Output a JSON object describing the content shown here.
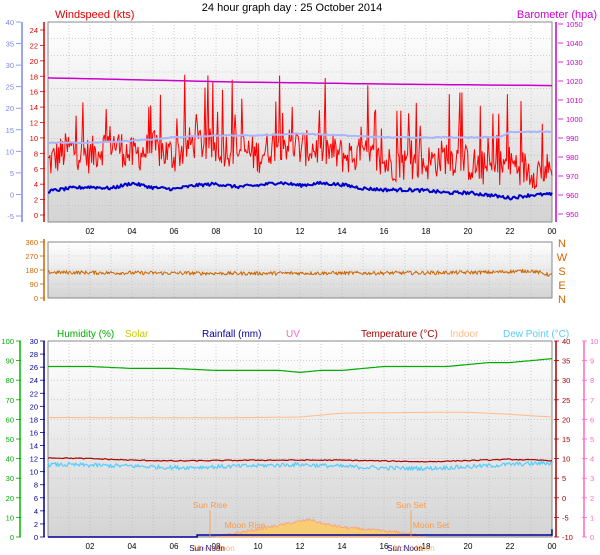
{
  "title": "24 hour graph day : 25 October 2014",
  "x_ticks": [
    "02",
    "04",
    "06",
    "08",
    "10",
    "12",
    "14",
    "16",
    "18",
    "20",
    "22",
    "00"
  ],
  "colors": {
    "wind": "#ff0000",
    "wind_avg": "#0000cc",
    "baro": "#cc00cc",
    "baro_avg": "#aab4ff",
    "dir": "#cc6600",
    "humidity": "#00aa00",
    "solar": "#cccc00",
    "rain": "#000099",
    "uv": "#ff66cc",
    "temp": "#aa0000",
    "indoor": "#ffbb88",
    "dew": "#55ccff",
    "panel_top": "#ffffff",
    "panel_bottom": "#d8d8d8"
  },
  "wind_panel": {
    "left_label": "Windspeed (kts)",
    "right_label": "Barometer (hpa)",
    "left_outer_ticks": [
      "40",
      "35",
      "30",
      "25",
      "20",
      "15",
      "10",
      "5",
      "0",
      "-5"
    ],
    "left_inner_ticks": [
      "24",
      "22",
      "20",
      "18",
      "16",
      "14",
      "12",
      "10",
      "8",
      "6",
      "4",
      "2",
      "0"
    ],
    "right_ticks": [
      "1050",
      "1040",
      "1030",
      "1020",
      "1010",
      "1000",
      "990",
      "980",
      "970",
      "960",
      "950"
    ]
  },
  "dir_panel": {
    "left_ticks": [
      "360",
      "270",
      "180",
      "90",
      "0"
    ],
    "compass": [
      "N",
      "W",
      "S",
      "E",
      "N"
    ]
  },
  "bottom_panel": {
    "labels": {
      "humidity": "Humidity (%)",
      "solar": "Solar",
      "rainfall": "Rainfall (mm)",
      "uv": "UV",
      "temperature": "Temperature (°C)",
      "indoor": "Indoor",
      "dewpoint": "Dew Point (°C)"
    },
    "hum_ticks": [
      "100",
      "90",
      "80",
      "70",
      "60",
      "50",
      "40",
      "30",
      "20",
      "10",
      "0"
    ],
    "rain_ticks": [
      "30",
      "28",
      "26",
      "24",
      "22",
      "20",
      "18",
      "16",
      "14",
      "12",
      "10",
      "8",
      "6",
      "4",
      "2",
      "0"
    ],
    "temp_ticks": [
      "40",
      "35",
      "30",
      "25",
      "20",
      "15",
      "10",
      "5",
      "0",
      "-5",
      "-10"
    ],
    "uv_ticks": [
      "10",
      "9",
      "8",
      "7",
      "6",
      "5",
      "4",
      "3",
      "2",
      "1",
      "0"
    ],
    "annotations": {
      "sun_rise": "Sun Rise",
      "sun_set": "Sun Set",
      "moon_rise": "Moon Rise",
      "moon_set": "Moon Set",
      "sun_noon_a": "Sun Noon",
      "moon_noon_a": "Moon Noon",
      "sun_noon_b": "Sun Noon",
      "moon_noon_b": "Moon Noon"
    }
  },
  "chart_data": [
    {
      "type": "line",
      "title": "24 hour graph day : 25 October 2014",
      "x_unit": "hour",
      "xlim": [
        0,
        24
      ],
      "ylabel": "Windspeed (kts)",
      "ylim": [
        0,
        25
      ],
      "y2label": "Barometer (hpa)",
      "y2lim": [
        948,
        1052
      ],
      "series": [
        {
          "key": "gust",
          "x": [
            0,
            1,
            2,
            3,
            4,
            5,
            6,
            7,
            8,
            9,
            10,
            11,
            12,
            13,
            14,
            15,
            16,
            17,
            18,
            19,
            20,
            21,
            22,
            23,
            24
          ],
          "values": [
            7,
            9,
            8,
            10,
            8,
            9,
            8,
            10,
            9,
            9,
            8,
            10,
            9,
            9,
            8,
            8,
            7,
            7,
            7,
            8,
            7,
            6,
            7,
            6,
            6
          ]
        },
        {
          "key": "average",
          "x": [
            0,
            1,
            2,
            3,
            4,
            5,
            6,
            7,
            8,
            9,
            10,
            11,
            12,
            13,
            14,
            15,
            16,
            17,
            18,
            19,
            20,
            21,
            22,
            23,
            24
          ],
          "values": [
            3.2,
            3.6,
            3.8,
            3.6,
            4.3,
            3.7,
            3.5,
            4.0,
            4.2,
            3.8,
            4.0,
            4.4,
            4.0,
            4.3,
            4.1,
            3.6,
            3.4,
            3.4,
            3.3,
            3.0,
            3.0,
            2.7,
            2.3,
            2.7,
            2.8
          ]
        },
        {
          "key": "barometer",
          "axis": "y2",
          "x": [
            0,
            3,
            6,
            9,
            12,
            15,
            18,
            21,
            24
          ],
          "values": [
            1022.5,
            1021.8,
            1021.0,
            1020.2,
            1019.8,
            1019.3,
            1018.9,
            1018.6,
            1018.3
          ]
        },
        {
          "key": "barometer_avg",
          "axis": "y2",
          "x": [
            0,
            2,
            4,
            6,
            8,
            10,
            12,
            14,
            16,
            18,
            20,
            21.5,
            22,
            24
          ],
          "values": [
            987,
            987,
            988,
            990,
            991,
            991,
            992,
            991,
            990,
            990,
            990,
            990,
            993,
            993
          ]
        }
      ]
    },
    {
      "type": "line",
      "ylim": [
        0,
        360
      ],
      "series": [
        {
          "key": "direction",
          "x": [
            0,
            3,
            6,
            9,
            12,
            15,
            18,
            21,
            23,
            24
          ],
          "values": [
            165,
            162,
            160,
            158,
            160,
            160,
            162,
            165,
            175,
            145
          ]
        }
      ]
    },
    {
      "type": "line",
      "ylabel": "Humidity (%)",
      "ylim": [
        0,
        100
      ],
      "y2label": "Temperature (°C)",
      "y2lim": [
        -10,
        40
      ],
      "series": [
        {
          "key": "humidity",
          "x": [
            0,
            2,
            4,
            6,
            8,
            10,
            11,
            12,
            13,
            14,
            15,
            16,
            17,
            18,
            19,
            20,
            21,
            22,
            23,
            24
          ],
          "values": [
            87,
            87,
            86,
            86,
            85,
            85,
            85,
            84,
            85,
            85,
            86,
            87,
            87,
            87,
            87,
            88,
            89,
            89,
            90,
            91
          ]
        },
        {
          "key": "indoor",
          "axis": "y2",
          "x": [
            0,
            4,
            8,
            12,
            14,
            16,
            18,
            20,
            22,
            24
          ],
          "values": [
            20.5,
            20.4,
            20.4,
            20.6,
            21.6,
            21.7,
            21.8,
            21.8,
            21.3,
            20.6
          ]
        },
        {
          "key": "temperature",
          "axis": "y2",
          "x": [
            0,
            2,
            4,
            6,
            8,
            10,
            12,
            14,
            16,
            18,
            20,
            22,
            24
          ],
          "values": [
            10.2,
            10.0,
            9.6,
            9.4,
            9.5,
            9.6,
            9.6,
            9.6,
            9.4,
            9.2,
            9.5,
            9.8,
            9.5
          ]
        },
        {
          "key": "dew_point",
          "axis": "y2",
          "x": [
            0,
            2,
            4,
            6,
            8,
            10,
            12,
            14,
            16,
            18,
            20,
            22,
            24
          ],
          "values": [
            8.5,
            8.3,
            8.1,
            7.7,
            7.9,
            8.2,
            8.5,
            8.0,
            7.6,
            7.5,
            7.9,
            8.5,
            8.9
          ]
        },
        {
          "key": "rainfall",
          "unit": "mm",
          "x": [
            0,
            5,
            7,
            7.1,
            8,
            24
          ],
          "values": [
            0,
            0,
            0,
            0.3,
            0.3,
            1.2
          ]
        },
        {
          "key": "solar",
          "x": [
            8,
            9,
            10,
            11,
            12,
            12.5,
            13,
            14,
            15,
            16,
            17,
            18
          ],
          "values": [
            0,
            2,
            4,
            6,
            8,
            9,
            7,
            5,
            4,
            3,
            2,
            0
          ]
        }
      ]
    }
  ]
}
